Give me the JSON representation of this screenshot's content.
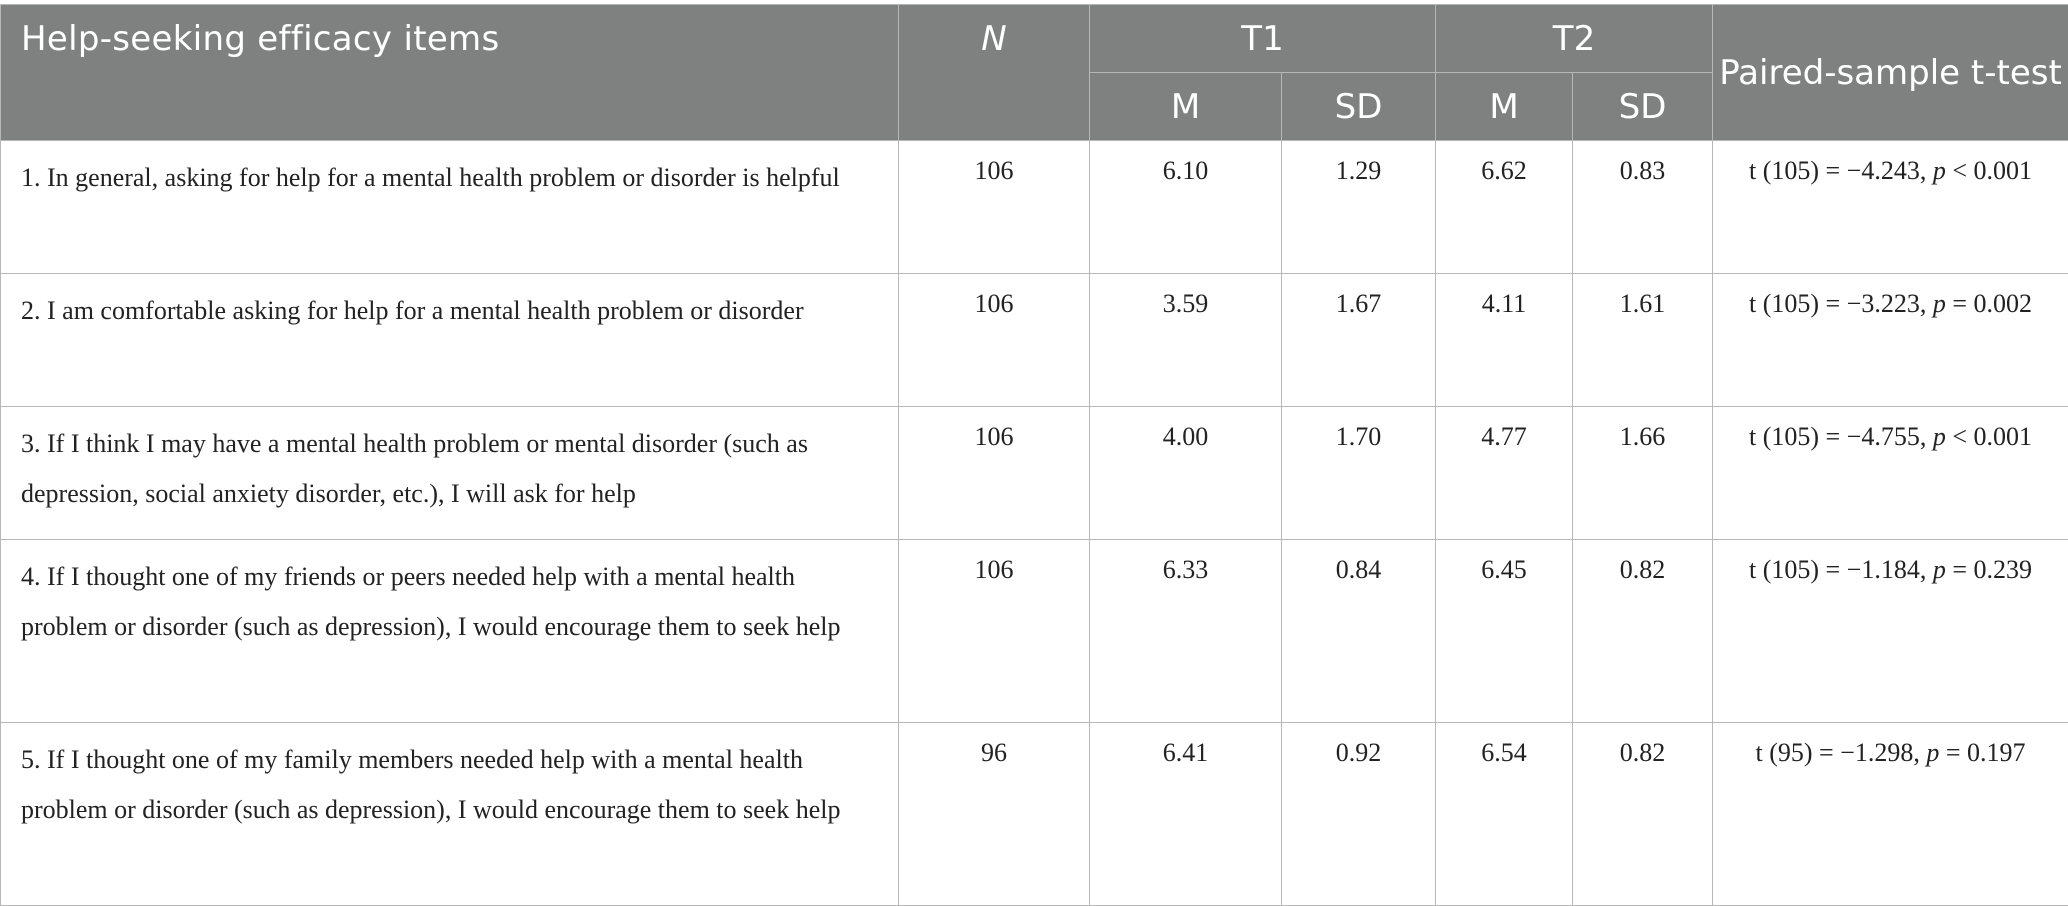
{
  "table": {
    "headers": {
      "item": "Help-seeking efficacy items",
      "n": "N",
      "t1": "T1",
      "t2": "T2",
      "m": "M",
      "sd": "SD",
      "test": "Paired-sample t-test"
    },
    "rows": [
      {
        "item": "1. In general, asking for help for a mental health problem or disorder is helpful",
        "n": "106",
        "t1_m": "6.10",
        "t1_sd": "1.29",
        "t2_m": "6.62",
        "t2_sd": "0.83",
        "test_prefix": "t (105) = −4.243, ",
        "test_p": "p",
        "test_suffix": " < 0.001"
      },
      {
        "item": "2. I am comfortable asking for help for a mental health problem or disorder",
        "n": "106",
        "t1_m": "3.59",
        "t1_sd": "1.67",
        "t2_m": "4.11",
        "t2_sd": "1.61",
        "test_prefix": "t (105) = −3.223, ",
        "test_p": "p",
        "test_suffix": " = 0.002"
      },
      {
        "item": "3. If I think I may have a mental health problem or mental disorder (such as depression, social anxiety disorder, etc.), I will ask for help",
        "n": "106",
        "t1_m": "4.00",
        "t1_sd": "1.70",
        "t2_m": "4.77",
        "t2_sd": "1.66",
        "test_prefix": "t (105) = −4.755, ",
        "test_p": "p",
        "test_suffix": " < 0.001"
      },
      {
        "item": "4. If I thought one of my friends or peers needed help with a mental health problem or disorder (such as depression), I would encourage them to seek help",
        "n": "106",
        "t1_m": "6.33",
        "t1_sd": "0.84",
        "t2_m": "6.45",
        "t2_sd": "0.82",
        "test_prefix": "t (105) = −1.184, ",
        "test_p": "p",
        "test_suffix": " = 0.239"
      },
      {
        "item": "5. If I thought one of my family members needed help with a mental health problem or disorder (such as depression), I would encourage them to seek help",
        "n": "96",
        "t1_m": "6.41",
        "t1_sd": "0.92",
        "t2_m": "6.54",
        "t2_sd": "0.82",
        "test_prefix": "t (95) = −1.298, ",
        "test_p": "p",
        "test_suffix": " = 0.197"
      }
    ]
  },
  "colors": {
    "header_bg": "#7f8180",
    "header_text": "#ffffff",
    "border": "#b7b7b7",
    "body_text": "#222222"
  }
}
